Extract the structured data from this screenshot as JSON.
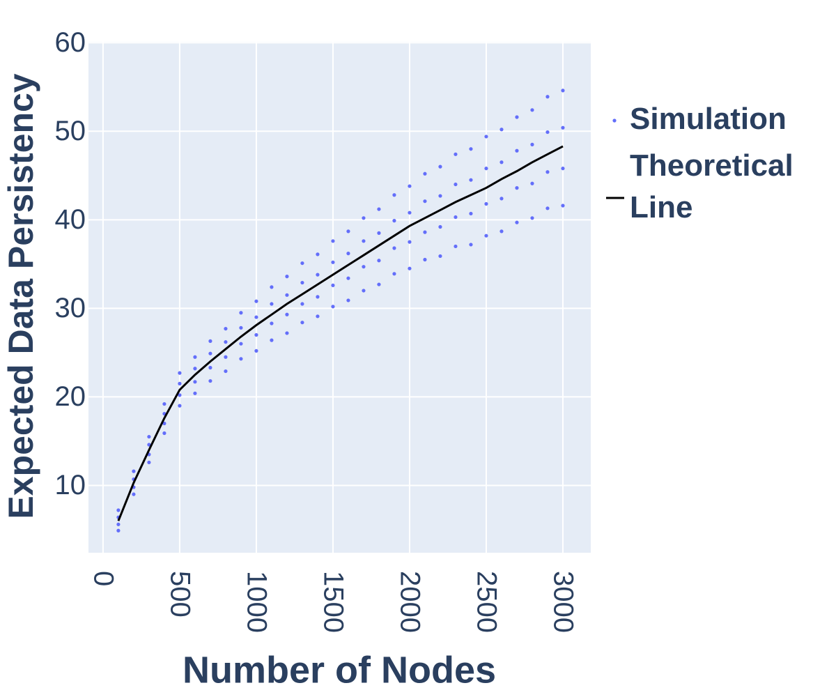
{
  "chart_data": {
    "type": "scatter",
    "xlabel": "Number of Nodes",
    "ylabel": "Expected Data Persistency",
    "xlim": [
      -95,
      3182
    ],
    "ylim": [
      2.4,
      60.1
    ],
    "xticks": [
      0,
      500,
      1000,
      1500,
      2000,
      2500,
      3000
    ],
    "yticks": [
      10,
      20,
      30,
      40,
      50,
      60
    ],
    "grid": true,
    "legend": "right",
    "series": [
      {
        "name": "Simulation",
        "mode": "markers",
        "color": "#636efa",
        "x": [
          100,
          100,
          100,
          100,
          200,
          200,
          200,
          200,
          300,
          300,
          300,
          300,
          400,
          400,
          400,
          400,
          500,
          500,
          500,
          500,
          600,
          600,
          600,
          600,
          700,
          700,
          700,
          700,
          800,
          800,
          800,
          800,
          900,
          900,
          900,
          900,
          1000,
          1000,
          1000,
          1000,
          1100,
          1100,
          1100,
          1100,
          1200,
          1200,
          1200,
          1200,
          1300,
          1300,
          1300,
          1300,
          1400,
          1400,
          1400,
          1400,
          1500,
          1500,
          1500,
          1500,
          1600,
          1600,
          1600,
          1600,
          1700,
          1700,
          1700,
          1700,
          1800,
          1800,
          1800,
          1800,
          1900,
          1900,
          1900,
          1900,
          2000,
          2000,
          2000,
          2000,
          2100,
          2100,
          2100,
          2100,
          2200,
          2200,
          2200,
          2200,
          2300,
          2300,
          2300,
          2300,
          2400,
          2400,
          2400,
          2400,
          2500,
          2500,
          2500,
          2500,
          2600,
          2600,
          2600,
          2600,
          2700,
          2700,
          2700,
          2700,
          2800,
          2800,
          2800,
          2800,
          2900,
          2900,
          2900,
          2900,
          3000,
          3000,
          3000,
          3000
        ],
        "values": [
          4.9,
          5.6,
          6.4,
          7.2,
          11.6,
          10.7,
          9.8,
          9.0,
          12.6,
          13.5,
          14.6,
          15.5,
          19.2,
          18.1,
          17.0,
          15.9,
          19.0,
          20.2,
          21.5,
          22.7,
          24.5,
          23.2,
          21.7,
          20.4,
          21.8,
          23.3,
          24.9,
          26.3,
          27.7,
          26.2,
          24.5,
          22.9,
          24.3,
          26.0,
          27.8,
          29.5,
          30.8,
          29.0,
          27.0,
          25.2,
          26.4,
          28.3,
          30.5,
          32.4,
          33.6,
          31.5,
          29.3,
          27.2,
          28.4,
          30.5,
          32.9,
          35.1,
          36.1,
          33.8,
          31.3,
          29.1,
          30.2,
          32.6,
          35.2,
          37.6,
          38.7,
          36.2,
          33.4,
          30.9,
          32.0,
          34.7,
          37.6,
          40.2,
          41.2,
          38.5,
          35.4,
          32.7,
          33.9,
          36.8,
          39.9,
          42.8,
          43.8,
          40.8,
          37.5,
          34.5,
          35.5,
          38.6,
          42.1,
          45.2,
          46.0,
          42.7,
          39.2,
          35.9,
          37.0,
          40.3,
          44.0,
          47.4,
          48.0,
          44.5,
          40.7,
          37.2,
          38.2,
          41.8,
          45.8,
          49.4,
          50.2,
          46.5,
          42.4,
          38.7,
          39.7,
          43.6,
          47.8,
          51.6,
          52.4,
          48.5,
          44.1,
          40.2,
          41.3,
          45.4,
          49.9,
          53.9,
          54.6,
          50.4,
          45.8,
          41.6
        ]
      },
      {
        "name": "Theoretical Line",
        "mode": "line",
        "color": "#000000",
        "x": [
          100,
          200,
          300,
          400,
          500,
          600,
          700,
          800,
          900,
          1000,
          1100,
          1200,
          1300,
          1400,
          1500,
          1600,
          1700,
          1800,
          1900,
          2000,
          2100,
          2200,
          2300,
          2400,
          2500,
          2600,
          2700,
          2800,
          2900,
          3000
        ],
        "values": [
          6.0,
          10.3,
          14.0,
          17.6,
          20.8,
          22.5,
          24.0,
          25.4,
          26.8,
          28.1,
          29.3,
          30.5,
          31.6,
          32.7,
          33.8,
          34.9,
          36.0,
          37.1,
          38.2,
          39.3,
          40.2,
          41.1,
          42.0,
          42.8,
          43.6,
          44.6,
          45.5,
          46.5,
          47.4,
          48.3
        ]
      }
    ]
  }
}
